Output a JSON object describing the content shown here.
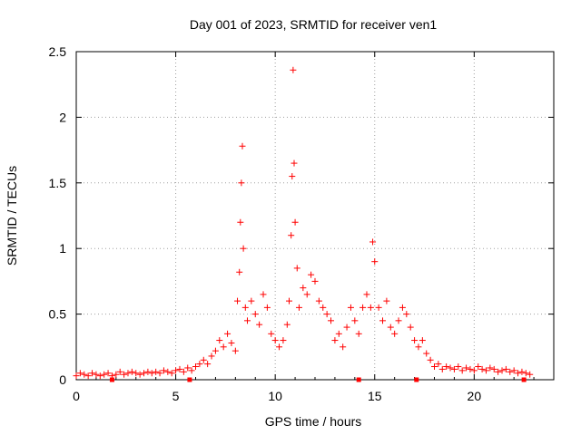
{
  "chart_data": {
    "type": "scatter",
    "title": "Day 001 of 2023, SRMTID for receiver ven1",
    "xlabel": "GPS time / hours",
    "ylabel": "SRMTID / TECUs",
    "xlim": [
      0,
      24
    ],
    "ylim": [
      0,
      2.5
    ],
    "xticks": [
      0,
      5,
      10,
      15,
      20
    ],
    "yticks": [
      0,
      0.5,
      1,
      1.5,
      2,
      2.5
    ],
    "ytick_labels": [
      "0",
      "0.5",
      "1",
      "1.5",
      "2",
      "2.5"
    ],
    "grid": true,
    "series": [
      {
        "name": "SRMTID",
        "marker": "plus",
        "color": "#ff0000",
        "x": [
          0.0,
          0.2,
          0.4,
          0.6,
          0.8,
          1.0,
          1.2,
          1.4,
          1.6,
          1.8,
          2.0,
          2.2,
          2.4,
          2.6,
          2.8,
          3.0,
          3.2,
          3.4,
          3.6,
          3.8,
          4.0,
          4.2,
          4.4,
          4.6,
          4.8,
          5.0,
          5.2,
          5.4,
          5.6,
          5.8,
          6.0,
          6.2,
          6.4,
          6.6,
          6.8,
          7.0,
          7.2,
          7.4,
          7.6,
          7.8,
          8.0,
          8.1,
          8.2,
          8.25,
          8.3,
          8.35,
          8.4,
          8.5,
          8.6,
          8.8,
          9.0,
          9.2,
          9.4,
          9.6,
          9.8,
          10.0,
          10.2,
          10.4,
          10.6,
          10.7,
          10.8,
          10.85,
          10.9,
          10.95,
          11.0,
          11.1,
          11.2,
          11.4,
          11.6,
          11.8,
          12.0,
          12.2,
          12.4,
          12.6,
          12.8,
          13.0,
          13.2,
          13.4,
          13.6,
          13.8,
          14.0,
          14.2,
          14.4,
          14.6,
          14.8,
          14.9,
          15.0,
          15.2,
          15.4,
          15.6,
          15.8,
          16.0,
          16.2,
          16.4,
          16.6,
          16.8,
          17.0,
          17.2,
          17.4,
          17.6,
          17.8,
          18.0,
          18.2,
          18.4,
          18.6,
          18.8,
          19.0,
          19.2,
          19.4,
          19.6,
          19.8,
          20.0,
          20.2,
          20.4,
          20.6,
          20.8,
          21.0,
          21.2,
          21.4,
          21.6,
          21.8,
          22.0,
          22.2,
          22.4,
          22.6,
          22.8
        ],
        "y": [
          0.03,
          0.05,
          0.04,
          0.03,
          0.05,
          0.04,
          0.03,
          0.04,
          0.05,
          0.03,
          0.04,
          0.06,
          0.04,
          0.05,
          0.06,
          0.05,
          0.04,
          0.05,
          0.06,
          0.05,
          0.06,
          0.05,
          0.07,
          0.06,
          0.05,
          0.07,
          0.08,
          0.06,
          0.09,
          0.07,
          0.1,
          0.12,
          0.15,
          0.12,
          0.18,
          0.22,
          0.3,
          0.25,
          0.35,
          0.28,
          0.22,
          0.6,
          0.82,
          1.2,
          1.5,
          1.78,
          1.0,
          0.55,
          0.45,
          0.6,
          0.5,
          0.42,
          0.65,
          0.55,
          0.35,
          0.3,
          0.25,
          0.3,
          0.42,
          0.6,
          1.1,
          1.55,
          2.36,
          1.65,
          1.2,
          0.85,
          0.55,
          0.7,
          0.65,
          0.8,
          0.75,
          0.6,
          0.55,
          0.5,
          0.45,
          0.3,
          0.35,
          0.25,
          0.4,
          0.55,
          0.45,
          0.35,
          0.55,
          0.65,
          0.55,
          1.05,
          0.9,
          0.55,
          0.45,
          0.6,
          0.4,
          0.35,
          0.45,
          0.55,
          0.5,
          0.4,
          0.3,
          0.25,
          0.3,
          0.2,
          0.15,
          0.1,
          0.12,
          0.08,
          0.1,
          0.09,
          0.08,
          0.1,
          0.07,
          0.09,
          0.08,
          0.07,
          0.1,
          0.08,
          0.07,
          0.09,
          0.08,
          0.06,
          0.07,
          0.08,
          0.06,
          0.07,
          0.05,
          0.06,
          0.05,
          0.04
        ]
      }
    ],
    "zero_markers_x": [
      1.8,
      5.7,
      14.2,
      17.1,
      22.5
    ]
  }
}
